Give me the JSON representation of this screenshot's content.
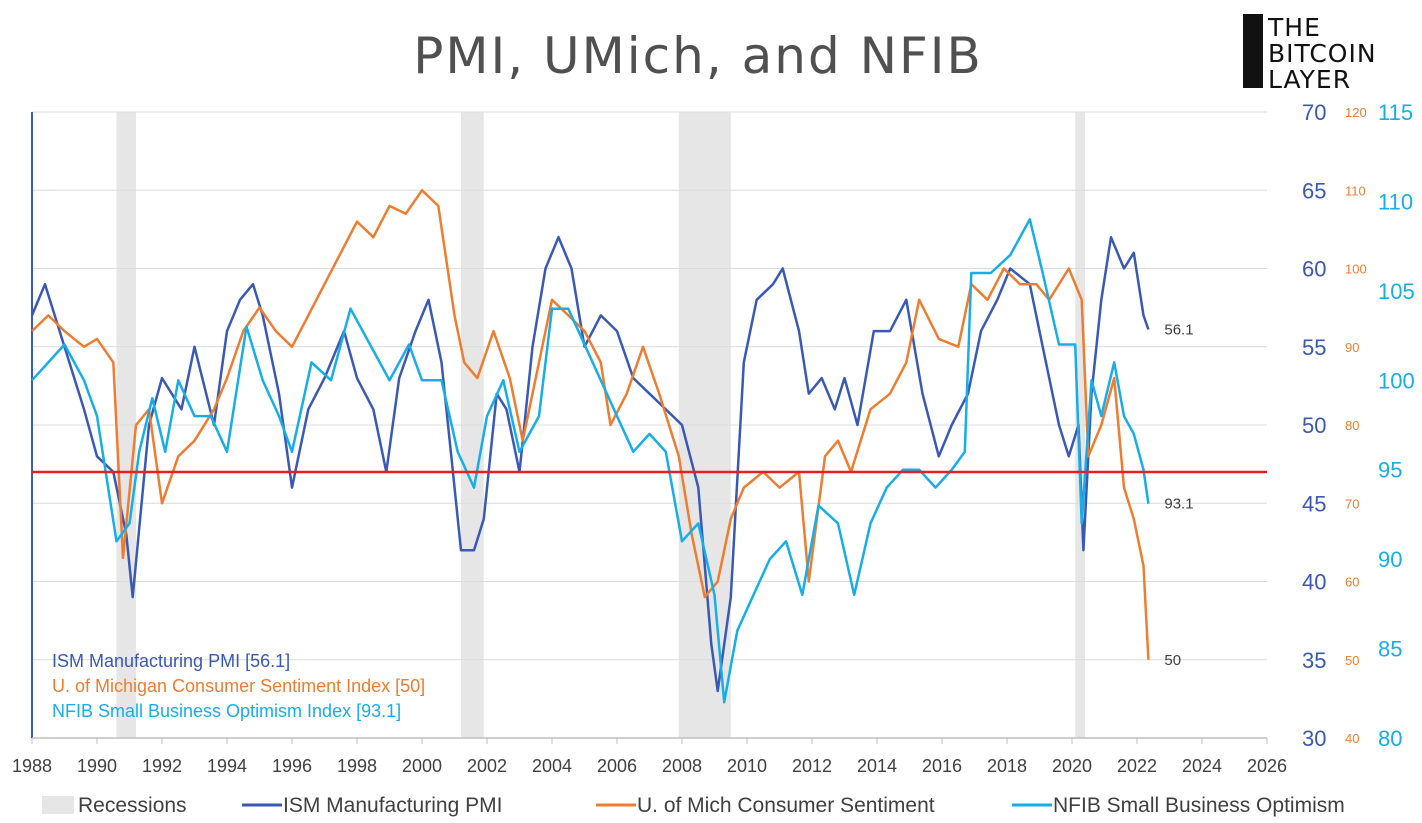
{
  "colors": {
    "ism": "#3a59b5",
    "umich": "#ee7d31",
    "nfib": "#17aee8",
    "recession": "#e6e6e6",
    "threshold": "#e41f26",
    "grid": "#dcdcdc"
  },
  "logo": {
    "line1": "THE",
    "line2": "BITCOIN",
    "line3": "LAYER"
  },
  "chart_data": {
    "type": "line",
    "title": "PMI, UMich, and NFIB",
    "xlim": [
      1988,
      2026
    ],
    "x_ticks": [
      "1988",
      "1990",
      "1992",
      "1994",
      "1996",
      "1998",
      "2000",
      "2002",
      "2004",
      "2006",
      "2008",
      "2010",
      "2012",
      "2014",
      "2016",
      "2018",
      "2020",
      "2022",
      "2024",
      "2026"
    ],
    "y_axes": {
      "left": {
        "series": "ISM Manufacturing PMI",
        "min": 30,
        "max": 70,
        "ticks": [
          "30",
          "35",
          "40",
          "45",
          "50",
          "55",
          "60",
          "65",
          "70"
        ]
      },
      "middle": {
        "series": "U. of Michigan Consumer Sentiment",
        "min": 40,
        "max": 120,
        "ticks": [
          "40",
          "50",
          "60",
          "70",
          "80",
          "90",
          "100",
          "110",
          "120"
        ]
      },
      "right": {
        "series": "NFIB Small Business Optimism",
        "min": 80,
        "max": 115,
        "ticks": [
          "80",
          "85",
          "90",
          "95",
          "100",
          "105",
          "110",
          "115"
        ]
      }
    },
    "threshold_line": {
      "axis": "left",
      "value": 47
    },
    "recessions": [
      [
        1990.6,
        1991.2
      ],
      [
        2001.2,
        2001.9
      ],
      [
        2007.9,
        2009.5
      ],
      [
        2020.1,
        2020.4
      ]
    ],
    "series": [
      {
        "name": "ISM Manufacturing PMI",
        "axis": "left",
        "x": [
          1988,
          1988.4,
          1989,
          1989.6,
          1990,
          1990.5,
          1990.9,
          1991.1,
          1991.6,
          1992,
          1992.6,
          1993,
          1993.6,
          1994,
          1994.4,
          1994.8,
          1995.1,
          1995.6,
          1996,
          1996.5,
          1997,
          1997.6,
          1998,
          1998.5,
          1998.9,
          1999.3,
          1999.8,
          2000.2,
          2000.6,
          2000.9,
          2001.2,
          2001.6,
          2001.9,
          2002.3,
          2002.6,
          2003,
          2003.4,
          2003.8,
          2004.2,
          2004.6,
          2005,
          2005.5,
          2006,
          2006.5,
          2007,
          2007.5,
          2008,
          2008.5,
          2008.9,
          2009.1,
          2009.5,
          2009.9,
          2010.3,
          2010.8,
          2011.1,
          2011.6,
          2011.9,
          2012.3,
          2012.7,
          2013,
          2013.4,
          2013.9,
          2014.4,
          2014.9,
          2015.4,
          2015.9,
          2016.3,
          2016.8,
          2017.2,
          2017.7,
          2018.1,
          2018.7,
          2019.1,
          2019.6,
          2019.9,
          2020.2,
          2020.35,
          2020.6,
          2020.9,
          2021.2,
          2021.6,
          2021.9,
          2022.2,
          2022.35
        ],
        "y": [
          57,
          59,
          55,
          51,
          48,
          47,
          43,
          39,
          50,
          53,
          51,
          55,
          50,
          56,
          58,
          59,
          57,
          52,
          46,
          51,
          53,
          56,
          53,
          51,
          47,
          53,
          56,
          58,
          54,
          48,
          42,
          42,
          44,
          52,
          51,
          47,
          55,
          60,
          62,
          60,
          55,
          57,
          56,
          53,
          52,
          51,
          50,
          46,
          36,
          33,
          39,
          54,
          58,
          59,
          60,
          56,
          52,
          53,
          51,
          53,
          50,
          56,
          56,
          58,
          52,
          48,
          50,
          52,
          56,
          58,
          60,
          59,
          55,
          50,
          48,
          50,
          42,
          52,
          58,
          62,
          60,
          61,
          57,
          56.1
        ]
      },
      {
        "name": "U. of Michigan Consumer Sentiment",
        "axis": "middle",
        "x": [
          1988,
          1988.5,
          1989,
          1989.6,
          1990,
          1990.5,
          1990.8,
          1991.2,
          1991.6,
          1992,
          1992.5,
          1993,
          1993.6,
          1994,
          1994.5,
          1995,
          1995.5,
          1996,
          1996.5,
          1997,
          1997.5,
          1998,
          1998.5,
          1999,
          1999.5,
          2000,
          2000.5,
          2001,
          2001.3,
          2001.7,
          2002.2,
          2002.7,
          2003.1,
          2003.6,
          2004,
          2004.5,
          2005,
          2005.5,
          2005.8,
          2006.3,
          2006.8,
          2007.3,
          2007.9,
          2008.3,
          2008.7,
          2009.1,
          2009.5,
          2009.9,
          2010.5,
          2011,
          2011.6,
          2011.9,
          2012.4,
          2012.8,
          2013.2,
          2013.8,
          2014.4,
          2014.9,
          2015.3,
          2015.9,
          2016.5,
          2016.9,
          2017.4,
          2017.9,
          2018.4,
          2018.9,
          2019.3,
          2019.9,
          2020.3,
          2020.5,
          2020.9,
          2021.3,
          2021.6,
          2021.9,
          2022.2,
          2022.35
        ],
        "y": [
          92,
          94,
          92,
          90,
          91,
          88,
          63,
          80,
          82,
          70,
          76,
          78,
          82,
          86,
          92,
          95,
          92,
          90,
          94,
          98,
          102,
          106,
          104,
          108,
          107,
          110,
          108,
          94,
          88,
          86,
          92,
          86,
          78,
          88,
          96,
          94,
          92,
          88,
          80,
          84,
          90,
          84,
          76,
          66,
          58,
          60,
          68,
          72,
          74,
          72,
          74,
          60,
          76,
          78,
          74,
          82,
          84,
          88,
          96,
          91,
          90,
          98,
          96,
          100,
          98,
          98,
          96,
          100,
          96,
          76,
          80,
          86,
          72,
          68,
          62,
          50
        ]
      },
      {
        "name": "NFIB Small Business Optimism",
        "axis": "right",
        "x": [
          1988,
          1988.5,
          1989,
          1989.6,
          1990,
          1990.6,
          1991,
          1991.3,
          1991.7,
          1992.1,
          1992.5,
          1993,
          1993.5,
          1994,
          1994.6,
          1995.1,
          1995.6,
          1996,
          1996.6,
          1997.2,
          1997.8,
          1998.4,
          1999,
          1999.6,
          2000,
          2000.6,
          2001.1,
          2001.6,
          2002,
          2002.5,
          2003,
          2003.6,
          2004,
          2004.5,
          2005,
          2005.5,
          2006,
          2006.5,
          2007,
          2007.5,
          2008,
          2008.5,
          2009,
          2009.3,
          2009.7,
          2010.2,
          2010.7,
          2011.2,
          2011.7,
          2012.2,
          2012.8,
          2013.3,
          2013.8,
          2014.3,
          2014.8,
          2015.3,
          2015.8,
          2016.3,
          2016.7,
          2016.9,
          2017.5,
          2018.1,
          2018.7,
          2019.1,
          2019.6,
          2020.1,
          2020.3,
          2020.6,
          2020.9,
          2021.3,
          2021.6,
          2021.9,
          2022.2,
          2022.35
        ],
        "y": [
          100,
          101,
          102,
          100,
          98,
          91,
          92,
          96,
          99,
          96,
          100,
          98,
          98,
          96,
          103,
          100,
          98,
          96,
          101,
          100,
          104,
          102,
          100,
          102,
          100,
          100,
          96,
          94,
          98,
          100,
          96,
          98,
          104,
          104,
          102,
          100,
          98,
          96,
          97,
          96,
          91,
          92,
          88,
          82,
          86,
          88,
          90,
          91,
          88,
          93,
          92,
          88,
          92,
          94,
          95,
          95,
          94,
          95,
          96,
          106,
          106,
          107,
          109,
          106,
          102,
          102,
          92,
          100,
          98,
          101,
          98,
          97,
          95,
          93.1
        ]
      }
    ],
    "end_labels": [
      "56.1",
      "93.1",
      "50"
    ],
    "inline_legend": [
      "ISM Manufacturing PMI [56.1]",
      "U. of Michigan Consumer Sentiment Index [50]",
      "NFIB Small Business Optimism Index [93.1]"
    ],
    "legend": {
      "placement": "bottom",
      "items": [
        "Recessions",
        "ISM Manufacturing PMI",
        "U. of Mich Consumer Sentiment",
        "NFIB Small Business Optimism"
      ]
    }
  }
}
